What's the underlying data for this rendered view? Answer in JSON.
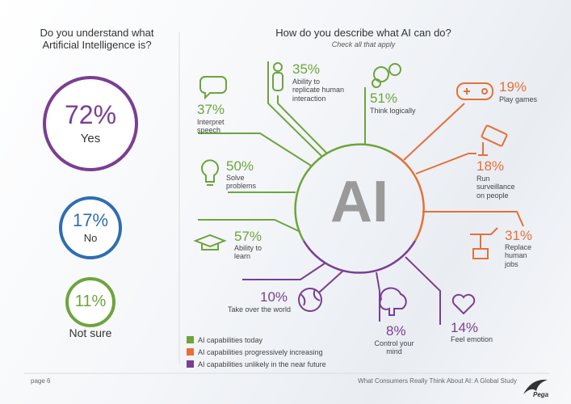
{
  "left": {
    "question": "Do you understand what\nArtificial Intelligence is?",
    "answers": [
      {
        "value": "72%",
        "label": "Yes"
      },
      {
        "value": "17%",
        "label": "No"
      },
      {
        "value": "11%",
        "label": "Not sure"
      }
    ]
  },
  "right": {
    "title": "How do you describe what AI can do?",
    "subtitle": "Check all that apply",
    "center": "AI",
    "items": [
      {
        "value": "37%",
        "label": "Interpret\nspeech"
      },
      {
        "value": "35%",
        "label": "Ability to\nreplicate human\ninteraction"
      },
      {
        "value": "51%",
        "label": "Think logically"
      },
      {
        "value": "50%",
        "label": "Solve\nproblems"
      },
      {
        "value": "57%",
        "label": "Ability to\nlearn"
      },
      {
        "value": "19%",
        "label": "Play games"
      },
      {
        "value": "18%",
        "label": "Run\nsurveillance\non people"
      },
      {
        "value": "31%",
        "label": "Replace\nhuman\njobs"
      },
      {
        "value": "10%",
        "label": "Take over the world"
      },
      {
        "value": "8%",
        "label": "Control your\nmind"
      },
      {
        "value": "14%",
        "label": "Feel emotion"
      }
    ]
  },
  "legend": [
    "AI capabilities today",
    "AI capabilities progressively increasing",
    "AI capabilities unlikely in the near future"
  ],
  "footer": {
    "page": "page 6",
    "study": "What Consumers Really Think About AI: A Global Study",
    "logo": "Pega"
  }
}
